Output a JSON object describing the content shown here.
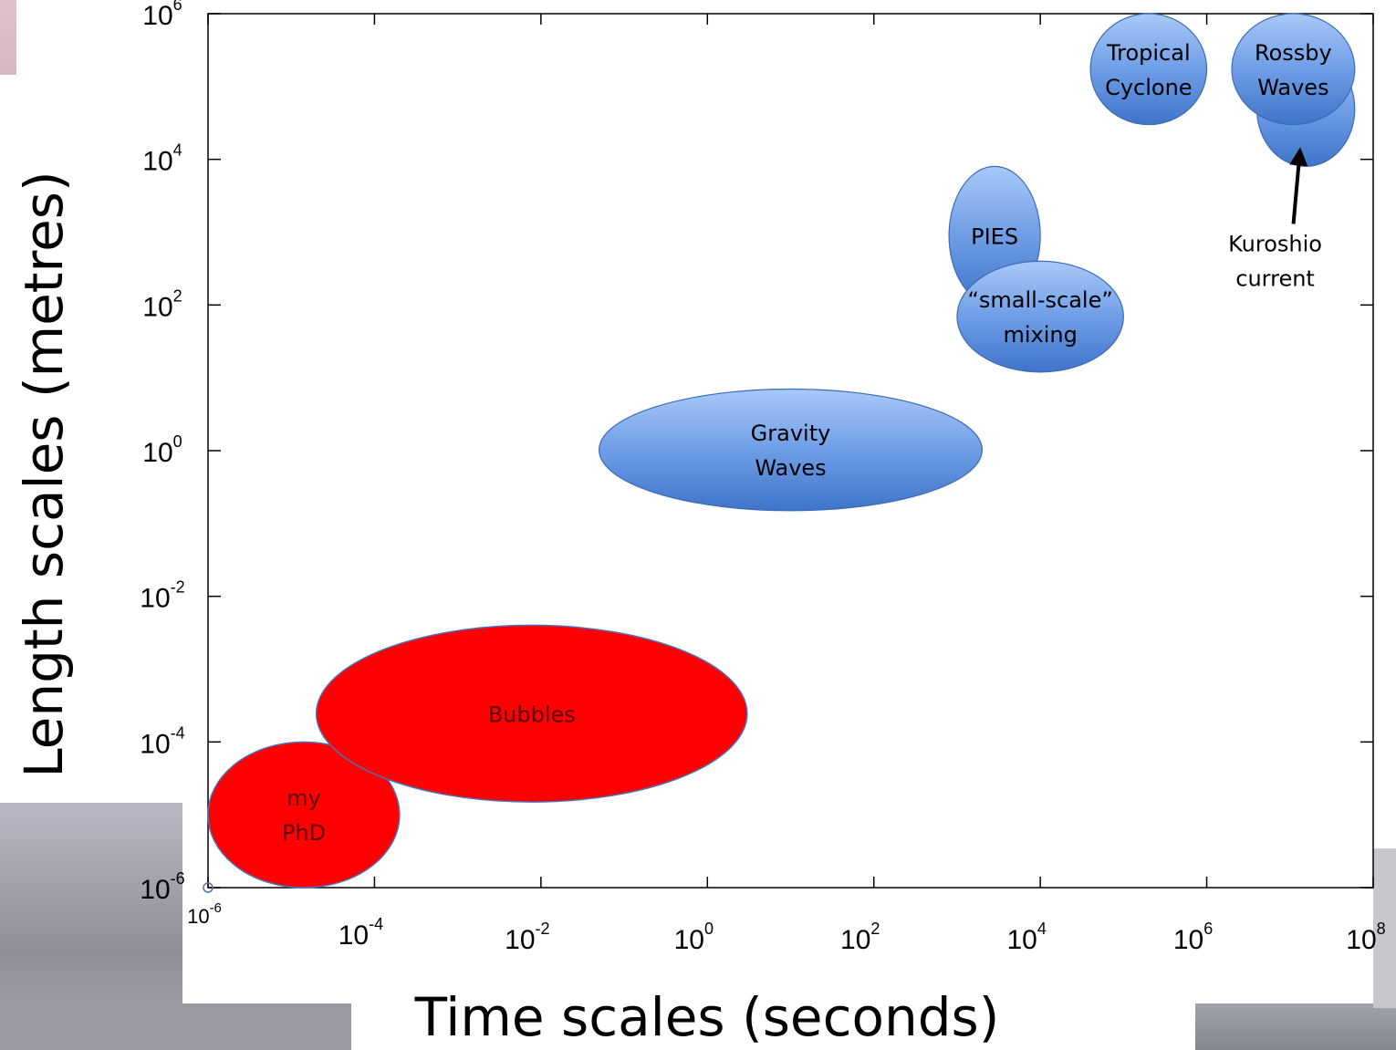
{
  "chart_data": {
    "type": "scatter",
    "title": "",
    "xlabel": "Time scales (seconds)",
    "ylabel": "Length scales (metres)",
    "xscale": "log",
    "yscale": "log",
    "xlim": [
      1e-06,
      100000000.0
    ],
    "ylim": [
      1e-06,
      1000000.0
    ],
    "grid": false,
    "x_ticks": [
      {
        "base": "10",
        "exp": "-4"
      },
      {
        "base": "10",
        "exp": "-2"
      },
      {
        "base": "10",
        "exp": "0"
      },
      {
        "base": "10",
        "exp": "2"
      },
      {
        "base": "10",
        "exp": "4"
      },
      {
        "base": "10",
        "exp": "6"
      },
      {
        "base": "10",
        "exp": "8"
      }
    ],
    "x_origin_tick": {
      "base": "10",
      "exp": "-6"
    },
    "y_ticks": [
      {
        "base": "10",
        "exp": "-6"
      },
      {
        "base": "10",
        "exp": "-4"
      },
      {
        "base": "10",
        "exp": "-2"
      },
      {
        "base": "10",
        "exp": "0"
      },
      {
        "base": "10",
        "exp": "2"
      },
      {
        "base": "10",
        "exp": "4"
      },
      {
        "base": "10",
        "exp": "6"
      }
    ],
    "regions": [
      {
        "label": [
          "my",
          "PhD"
        ],
        "color": "#ff0000",
        "x_range": [
          1e-06,
          0.0002
        ],
        "y_range": [
          1e-06,
          0.0001
        ]
      },
      {
        "label": [
          "Bubbles"
        ],
        "color": "#ff0000",
        "x_range": [
          2e-05,
          3.0
        ],
        "y_range": [
          1.5e-05,
          0.004
        ]
      },
      {
        "label": [
          "Gravity",
          "Waves"
        ],
        "color": "#5b8fd9",
        "x_range": [
          0.05,
          2000.0
        ],
        "y_range": [
          0.15,
          7.0
        ]
      },
      {
        "label": [
          "PIES"
        ],
        "color": "#5b8fd9",
        "x_range": [
          800.0,
          10000.0
        ],
        "y_range": [
          100.0,
          8000.0
        ]
      },
      {
        "label": [
          "“small-scale”",
          "mixing"
        ],
        "color": "#5b8fd9",
        "x_range": [
          1000.0,
          100000.0
        ],
        "y_range": [
          12.0,
          400.0
        ]
      },
      {
        "label": [
          "Tropical",
          "Cyclone"
        ],
        "color": "#5b8fd9",
        "x_range": [
          40000.0,
          1000000.0
        ],
        "y_range": [
          30000.0,
          1000000.0
        ]
      },
      {
        "label": [
          ""
        ],
        "color": "#5b8fd9",
        "x_range": [
          4000000.0,
          60000000.0
        ],
        "y_range": [
          8000.0,
          300000.0
        ]
      },
      {
        "label": [
          "Rossby",
          "Waves"
        ],
        "color": "#5b8fd9",
        "x_range": [
          2000000.0,
          60000000.0
        ],
        "y_range": [
          30000.0,
          1000000.0
        ]
      }
    ],
    "annotations": [
      {
        "text": [
          "Kuroshio",
          "current"
        ],
        "arrow_to": {
          "x": 13000000.0,
          "y": 11000.0
        },
        "arrow_from": {
          "x": 11000000.0,
          "y": 1300.0
        }
      }
    ]
  }
}
